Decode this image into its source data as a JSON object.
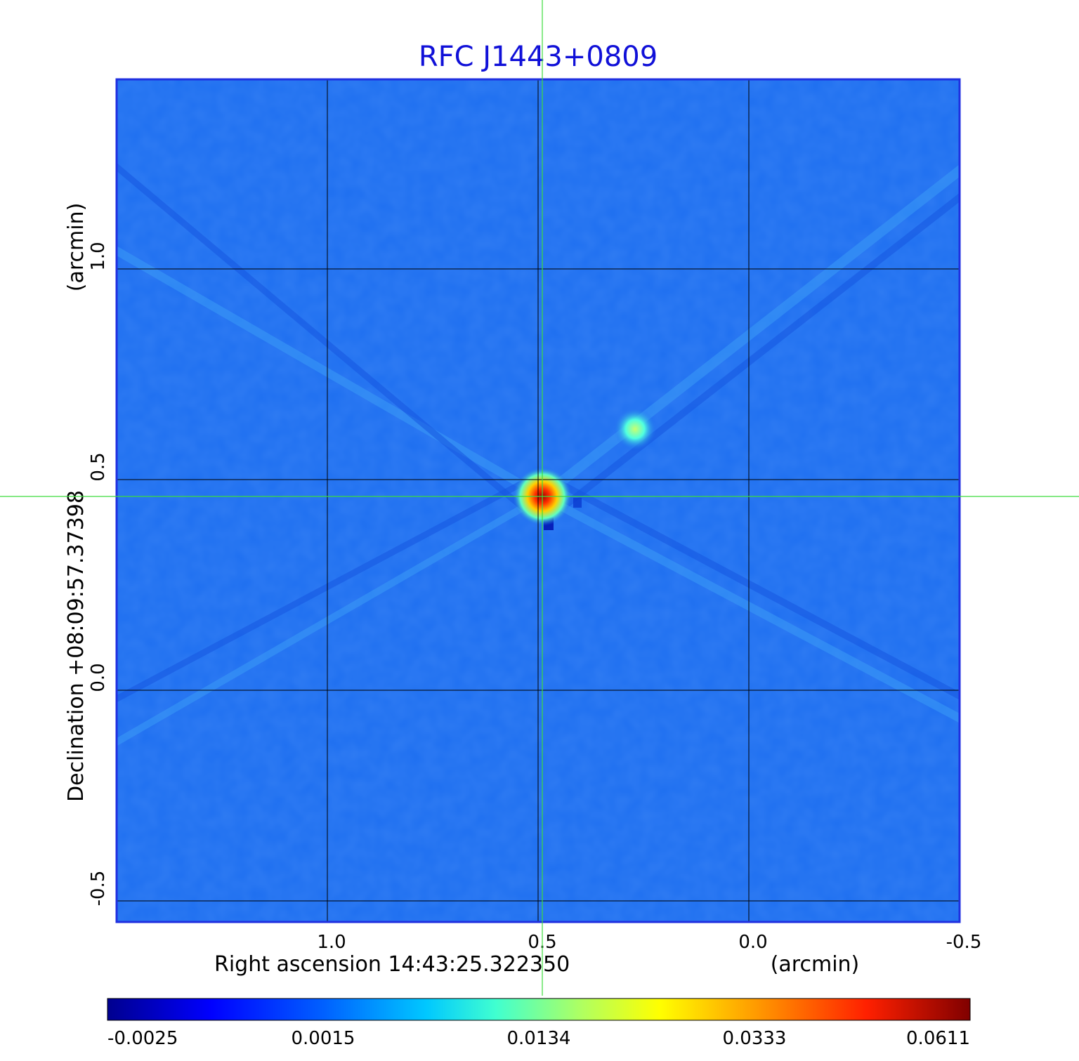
{
  "chart_data": {
    "type": "heatmap",
    "title": "RFC J1443+0809",
    "xlabel": "Right ascension  14:43:25.322350",
    "xlabel_unit": "(arcmin)",
    "ylabel": "Declination  +08:09:57.37398",
    "ylabel_unit": "(arcmin)",
    "xlim": [
      1.5,
      -0.5
    ],
    "ylim": [
      -0.55,
      1.45
    ],
    "xticks": [
      1.0,
      0.5,
      0.0,
      -0.5
    ],
    "xtick_labels": [
      "1.0",
      "0.5",
      "0.0",
      "-0.5"
    ],
    "yticks": [
      -0.5,
      0.0,
      0.5,
      1.0
    ],
    "ytick_labels": [
      "-0.5",
      "0.0",
      "0.5",
      "1.0"
    ],
    "grid": true,
    "crosshair": {
      "x": 0.49,
      "y": 0.46
    },
    "sources": [
      {
        "x": 0.49,
        "y": 0.46,
        "peak": 0.0611
      },
      {
        "x": 0.27,
        "y": 0.62,
        "peak": 0.016
      }
    ],
    "colorbar": {
      "colormap": "jet",
      "tick_labels": [
        "-0.0025",
        "0.0015",
        "0.0134",
        "0.0333",
        "0.0611"
      ],
      "tick_values": [
        -0.0025,
        0.0015,
        0.0134,
        0.0333,
        0.0611
      ]
    },
    "colors": {
      "background_field": "#1e6ff0",
      "frame": "#1f2fe0",
      "grid": "#000000",
      "crosshair": "#3ddc3d",
      "title": "#1010d8"
    }
  }
}
